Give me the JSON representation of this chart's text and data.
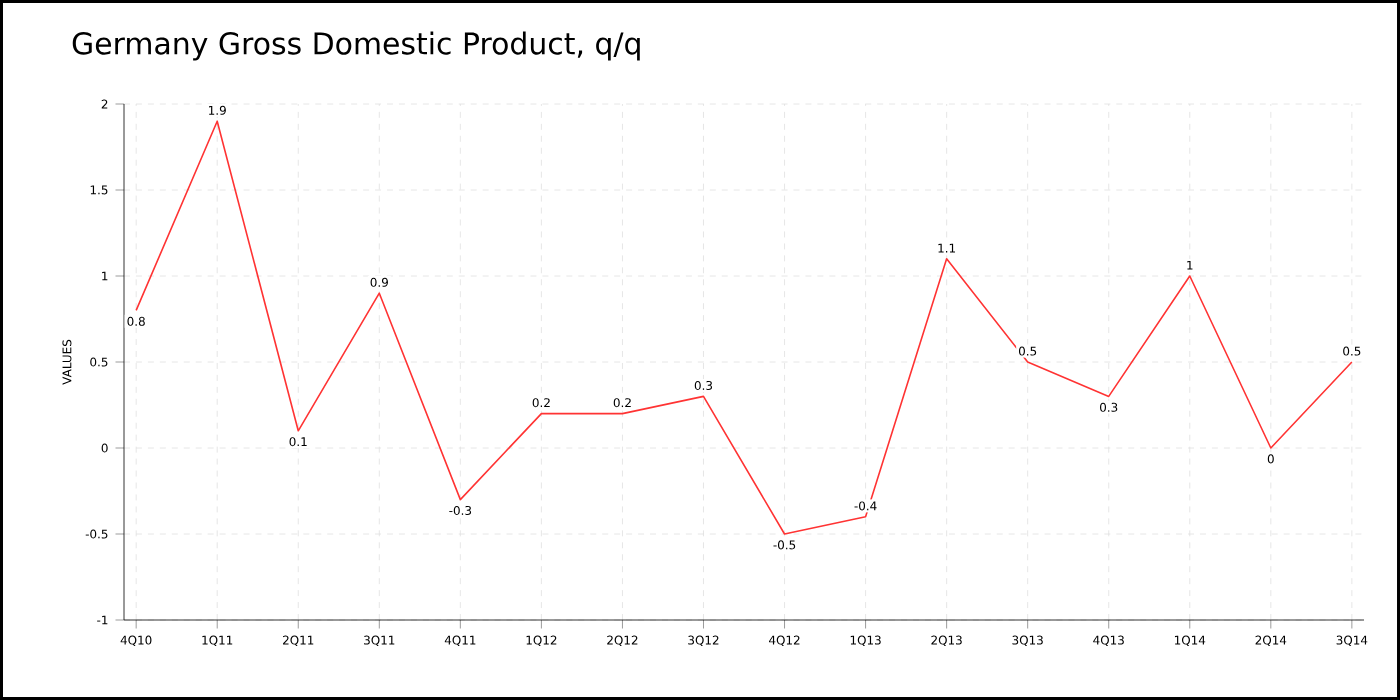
{
  "chart_data": {
    "type": "line",
    "title": "Germany Gross Domestic Product, q/q",
    "ylabel": "VALUES",
    "categories": [
      "4Q10",
      "1Q11",
      "2Q11",
      "3Q11",
      "4Q11",
      "1Q12",
      "2Q12",
      "3Q12",
      "4Q12",
      "1Q13",
      "2Q13",
      "3Q13",
      "4Q13",
      "1Q14",
      "2Q14",
      "3Q14"
    ],
    "series": [
      {
        "color": "#ff3333",
        "values": [
          0.8,
          1.9,
          0.1,
          0.9,
          -0.3,
          0.2,
          0.2,
          0.3,
          -0.5,
          -0.4,
          1.1,
          0.5,
          0.3,
          1,
          0,
          0.5
        ]
      }
    ],
    "ylim": [
      -1,
      2
    ],
    "yticks": [
      -1,
      -0.5,
      0,
      0.5,
      1,
      1.5,
      2
    ],
    "grid": true,
    "data_labels": true,
    "marker": "none",
    "line_style": "solid"
  }
}
